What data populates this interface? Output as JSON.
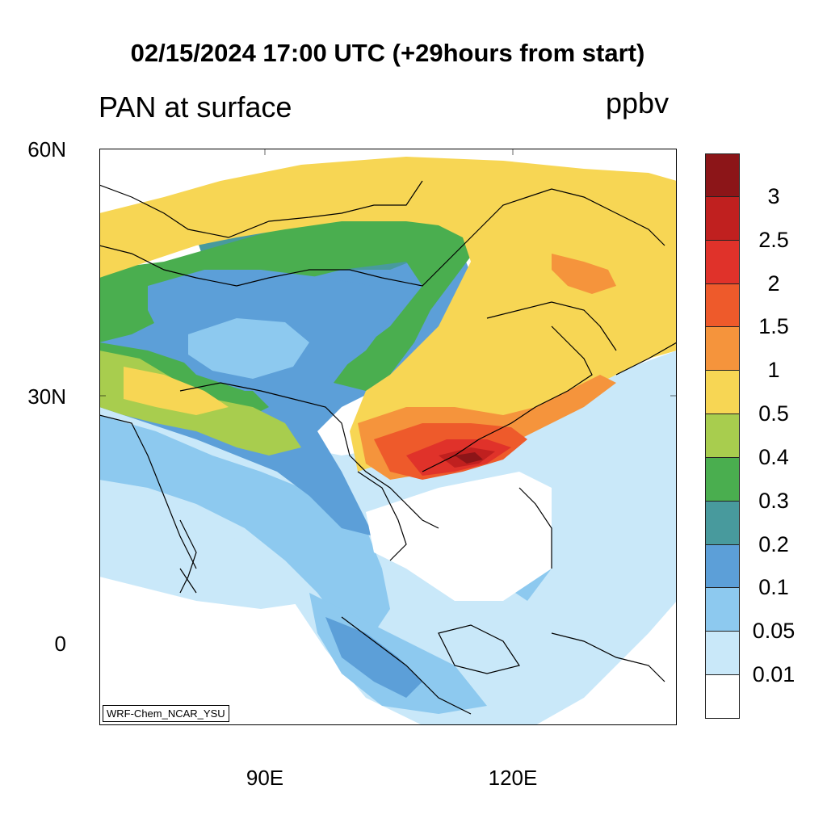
{
  "title": "02/15/2024 17:00 UTC (+29hours from start)",
  "subtitle_left": "PAN at surface",
  "units": "ppbv",
  "credit": "WRF-Chem_NCAR_YSU",
  "lat_labels": [
    "60N",
    "30N",
    "0"
  ],
  "lon_labels": [
    "90E",
    "120E"
  ],
  "colorbar": {
    "levels": [
      "3",
      "2.5",
      "2",
      "1.5",
      "1",
      "0.5",
      "0.4",
      "0.3",
      "0.2",
      "0.1",
      "0.05",
      "0.01"
    ],
    "colors": [
      "#8c1518",
      "#c0201f",
      "#e0322a",
      "#ee5a2b",
      "#f5943c",
      "#f7d654",
      "#a8cd4e",
      "#4aae4f",
      "#489a9d",
      "#5c9fd8",
      "#8dc9ef",
      "#c9e8f9",
      "#ffffff"
    ]
  },
  "map_colors": {
    "land_outline": "#000000",
    "very_low": "#c9e8f9",
    "low": "#8dc9ef",
    "blue": "#5c9fd8",
    "teal": "#489a9d",
    "green": "#4aae4f",
    "lime": "#a8cd4e",
    "yellow": "#f7d654",
    "orange": "#f5943c",
    "red_orange": "#ee5a2b",
    "red": "#e0322a",
    "dark_red": "#c0201f",
    "darkest": "#8c1518"
  }
}
